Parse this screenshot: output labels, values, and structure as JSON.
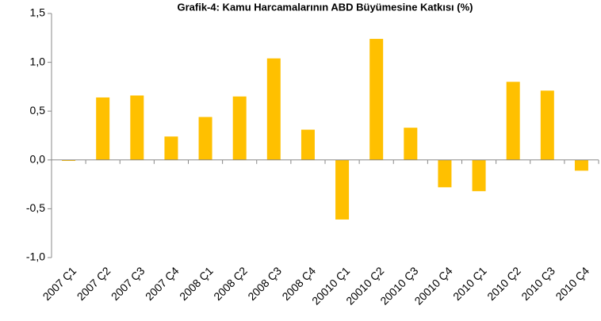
{
  "chart_data": {
    "type": "bar",
    "title": "Grafik-4: Kamu Harcamalarının ABD Büyümesine Katkısı (%)",
    "categories": [
      "2007 Ç1",
      "2007 Ç2",
      "2007 Ç3",
      "2007 Ç4",
      "2008 Ç1",
      "2008 Ç2",
      "2008 Ç3",
      "2008 Ç4",
      "20010 Ç1",
      "20010 Ç2",
      "20010 Ç3",
      "20010 Ç4",
      "2010 Ç1",
      "2010 Ç2",
      "2010 Ç3",
      "2010 Ç4"
    ],
    "values": [
      -0.01,
      0.64,
      0.66,
      0.24,
      0.44,
      0.65,
      1.04,
      0.31,
      -0.61,
      1.24,
      0.33,
      -0.28,
      -0.32,
      0.8,
      0.71,
      -0.11
    ],
    "color": "#ffc000",
    "ylim": [
      -1.0,
      1.5
    ],
    "yticks": [
      {
        "value": -1.0,
        "label": "-1,0"
      },
      {
        "value": -0.5,
        "label": "-0,5"
      },
      {
        "value": 0,
        "label": "0,0"
      },
      {
        "value": 0.5,
        "label": "0,5"
      },
      {
        "value": 1.0,
        "label": "1,0"
      },
      {
        "value": 1.5,
        "label": "1,5"
      }
    ],
    "grid": false
  }
}
